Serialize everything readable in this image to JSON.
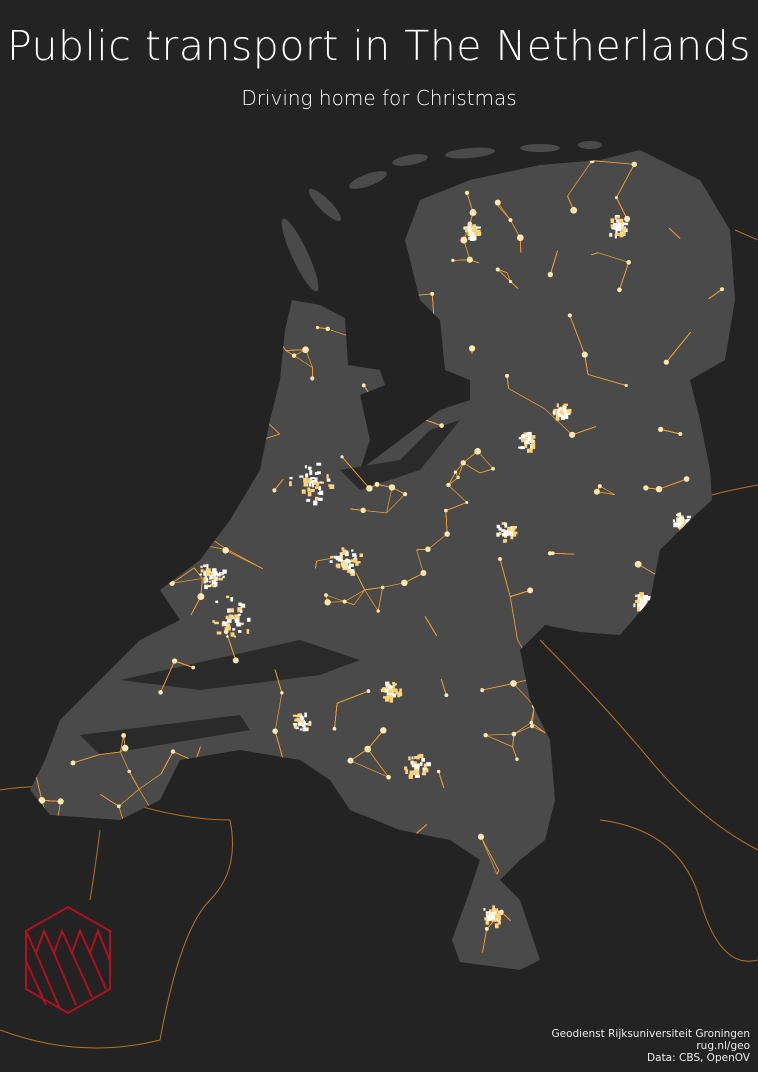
{
  "title": "Public transport in The Netherlands",
  "subtitle": "Driving home for Christmas",
  "credits": {
    "line1": "Geodienst Rijksuniversiteit Groningen",
    "line2": "rug.nl/geo",
    "line3": "Data: CBS, OpenOV"
  },
  "logo": {
    "name": "rug-geodienst-hexagon-logo",
    "color": "#b01020"
  },
  "colors": {
    "background": "#232323",
    "land": "#4a4a4a",
    "transit_lines": "#f0a030",
    "stops": "#ffe7b0"
  }
}
